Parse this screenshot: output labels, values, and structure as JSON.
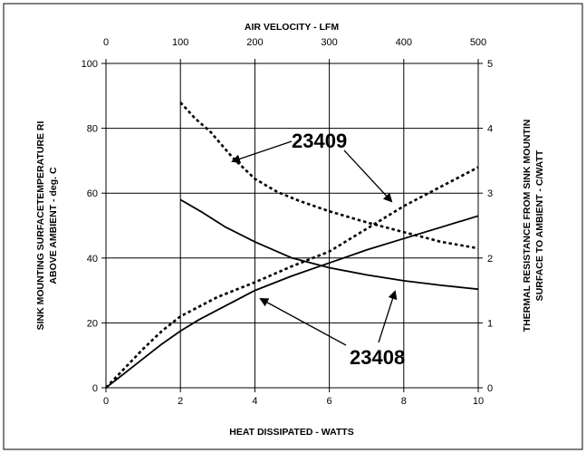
{
  "chart_data": {
    "type": "line",
    "xlabel": "HEAT DISSIPATED - WATTS",
    "x2label": "AIR VELOCITY - LFM",
    "ylabel_lines": [
      "SINK MOUNTING SURFACETEMPERATURE RI",
      "ABOVE AMBIENT - deg. C"
    ],
    "y2label_lines": [
      "THERMAL RESISTANCE FROM SINK MOUNTIN",
      "SURFACE TO AMBIENT - C/WATT"
    ],
    "xlim": [
      0,
      10
    ],
    "x2lim": [
      0,
      500
    ],
    "ylim": [
      0,
      100
    ],
    "y2lim": [
      0,
      5
    ],
    "x_ticks": [
      "0",
      "2",
      "4",
      "6",
      "8",
      "10"
    ],
    "x2_ticks": [
      "0",
      "100",
      "200",
      "300",
      "400",
      "500"
    ],
    "y_ticks": [
      "0",
      "20",
      "40",
      "60",
      "80",
      "100"
    ],
    "y2_ticks": [
      "0",
      "1",
      "2",
      "3",
      "4",
      "5"
    ],
    "grid": true,
    "series": [
      {
        "model": "23408",
        "kind": "temperature_rise",
        "axis": "bottom-left",
        "style": "solid",
        "x": [
          0,
          0.5,
          1,
          1.5,
          2,
          2.5,
          3,
          4,
          5,
          6,
          7,
          8,
          9,
          10
        ],
        "y": [
          0,
          4.5,
          9,
          13.5,
          17.5,
          21,
          24,
          30,
          34.5,
          38.5,
          42.5,
          46,
          49.5,
          53
        ]
      },
      {
        "model": "23408",
        "kind": "thermal_resistance",
        "axis": "top-right",
        "style": "solid",
        "x": [
          100,
          130,
          160,
          200,
          250,
          300,
          350,
          400,
          450,
          500
        ],
        "y": [
          2.9,
          2.7,
          2.48,
          2.25,
          2.0,
          1.85,
          1.74,
          1.65,
          1.58,
          1.52
        ]
      },
      {
        "model": "23409",
        "kind": "temperature_rise",
        "axis": "bottom-left",
        "style": "dashed",
        "x": [
          0,
          0.5,
          1,
          1.5,
          2,
          3,
          4,
          5,
          6,
          7,
          8,
          9,
          10
        ],
        "y": [
          0,
          6,
          12,
          17.5,
          22,
          28,
          32.5,
          37.5,
          42,
          49,
          56,
          62,
          68
        ]
      },
      {
        "model": "23409",
        "kind": "thermal_resistance",
        "axis": "top-right",
        "style": "dashed",
        "x": [
          100,
          120,
          140,
          170,
          200,
          230,
          260,
          300,
          350,
          400,
          450,
          500
        ],
        "y": [
          4.4,
          4.15,
          3.95,
          3.55,
          3.22,
          3.02,
          2.88,
          2.72,
          2.55,
          2.4,
          2.25,
          2.15
        ]
      }
    ],
    "annotations": [
      "23409",
      "23408"
    ]
  }
}
